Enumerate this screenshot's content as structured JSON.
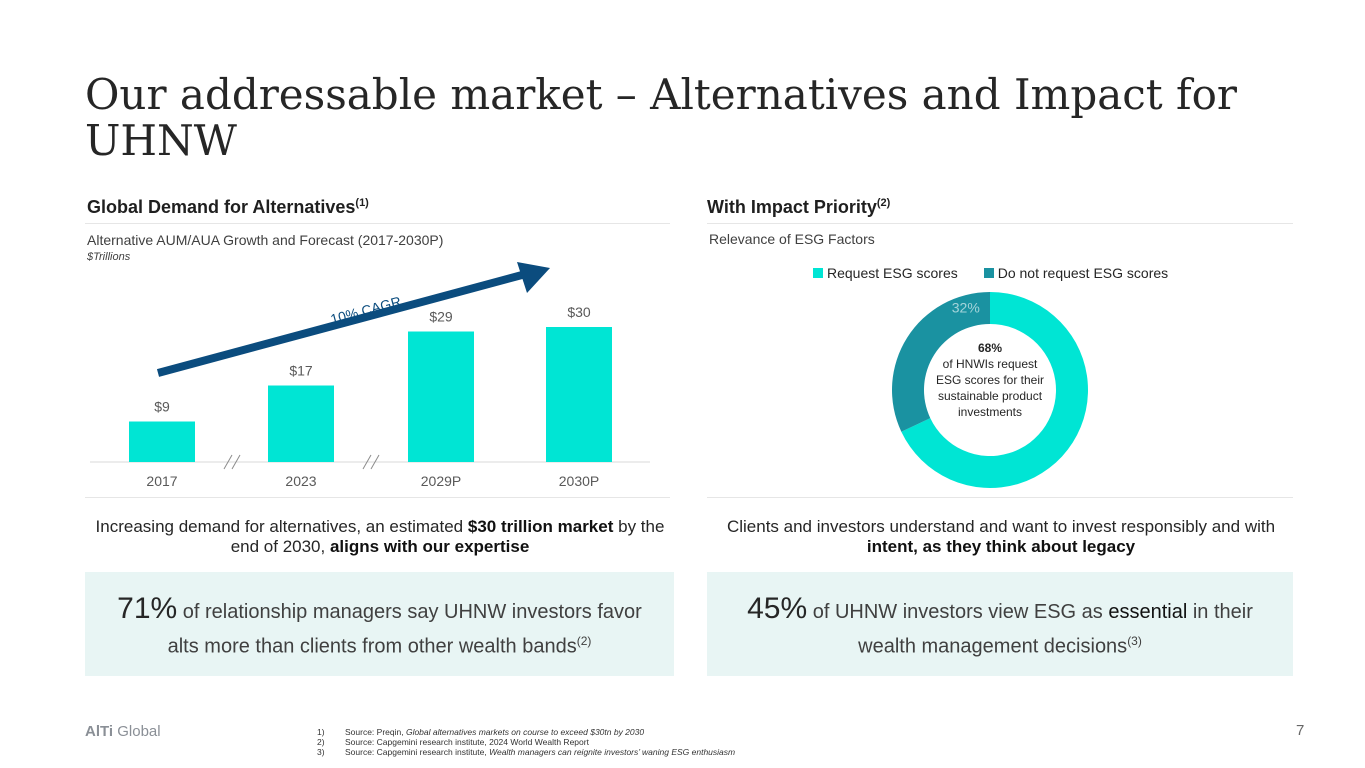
{
  "title": "Our addressable market – Alternatives and Impact for UHNW",
  "left": {
    "heading": "Global Demand for Alternatives",
    "heading_sup": "(1)",
    "subtitle": "Alternative AUM/AUA Growth and Forecast (2017-2030P)",
    "units": "$Trillions",
    "cagr_label": "10% CAGR",
    "statement_pre": "Increasing demand for alternatives, an estimated ",
    "statement_bold1": "$30 trillion market",
    "statement_mid": " by the end of 2030, ",
    "statement_bold2": "aligns with our expertise",
    "callout_big": "71%",
    "callout_text": " of relationship managers say UHNW investors favor alts more than clients from other wealth bands",
    "callout_sup": "(2)"
  },
  "right": {
    "heading": "With Impact Priority",
    "heading_sup": "(2)",
    "subtitle": "Relevance of ESG Factors",
    "center_pct": "68%",
    "center_text": "of HNWIs request ESG scores for their sustainable product investments",
    "statement_pre": "Clients and investors understand and want to invest responsibly and with ",
    "statement_bold": "intent, as they think about legacy",
    "callout_big": "45%",
    "callout_text1": " of UHNW investors view ESG as ",
    "callout_essential": "essential",
    "callout_text2": " in their wealth management decisions",
    "callout_sup": "(3)"
  },
  "chart_data": [
    {
      "type": "bar",
      "categories": [
        "2017",
        "2023",
        "2029P",
        "2030P"
      ],
      "values": [
        9,
        17,
        29,
        30
      ],
      "data_labels": [
        "$9",
        "$17",
        "$29",
        "$30"
      ],
      "title": "Alternative AUM/AUA Growth and Forecast (2017-2030P)",
      "ylabel": "$Trillions",
      "ylim": [
        0,
        30
      ],
      "color": "#00e5d4",
      "annotation": "10% CAGR"
    },
    {
      "type": "pie",
      "subtitle": "Relevance of ESG Factors",
      "series": [
        {
          "name": "Request ESG scores",
          "value": 68,
          "label": "68%",
          "color": "#00e5d4"
        },
        {
          "name": "Do not request ESG scores",
          "value": 32,
          "label": "32%",
          "color": "#1a92a1"
        }
      ],
      "legend": "top"
    }
  ],
  "footer": {
    "brand_bold": "AlTi",
    "brand_rest": " Global",
    "page": "7",
    "notes": [
      {
        "num": "1)",
        "text": "Source: Preqin, ",
        "italic": "Global alternatives markets on course to exceed $30tn by 2030"
      },
      {
        "num": "2)",
        "text": "Source: Capgemini research institute, 2024 World Wealth Report",
        "italic": ""
      },
      {
        "num": "3)",
        "text": "Source: Capgemini research institute, ",
        "italic": "Wealth managers can reignite investors’ waning ESG enthusiasm"
      }
    ]
  }
}
